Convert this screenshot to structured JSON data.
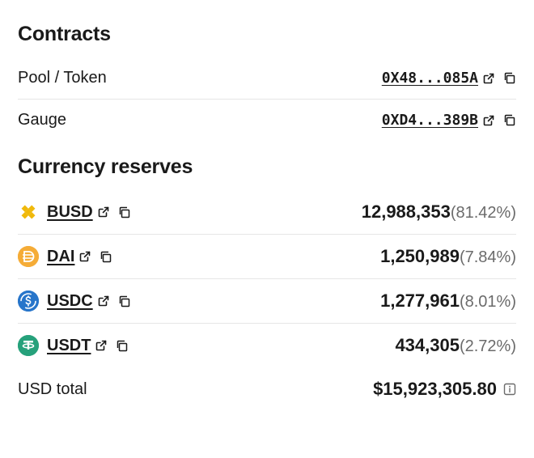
{
  "contracts": {
    "heading": "Contracts",
    "rows": [
      {
        "label": "Pool / Token",
        "address": "0X48...085A"
      },
      {
        "label": "Gauge",
        "address": "0XD4...389B"
      }
    ]
  },
  "reserves": {
    "heading": "Currency reserves",
    "tokens": [
      {
        "symbol": "BUSD",
        "amount": "12,988,353",
        "pct": "(81.42%)",
        "icon_bg": "#ffffff",
        "icon_fg": "#f0b90b",
        "icon_type": "busd"
      },
      {
        "symbol": "DAI",
        "amount": "1,250,989",
        "pct": "(7.84%)",
        "icon_bg": "#f5ac37",
        "icon_fg": "#ffffff",
        "icon_type": "dai"
      },
      {
        "symbol": "USDC",
        "amount": "1,277,961",
        "pct": "(8.01%)",
        "icon_bg": "#2775ca",
        "icon_fg": "#ffffff",
        "icon_type": "usdc"
      },
      {
        "symbol": "USDT",
        "amount": "434,305",
        "pct": "(2.72%)",
        "icon_bg": "#26a17b",
        "icon_fg": "#ffffff",
        "icon_type": "usdt"
      }
    ],
    "total_label": "USD total",
    "total_value": "$15,923,305.80"
  },
  "style": {
    "text_color": "#1a1a1a",
    "muted_color": "#6b6b6b",
    "divider_color": "#e6e6e6",
    "background": "#ffffff"
  }
}
